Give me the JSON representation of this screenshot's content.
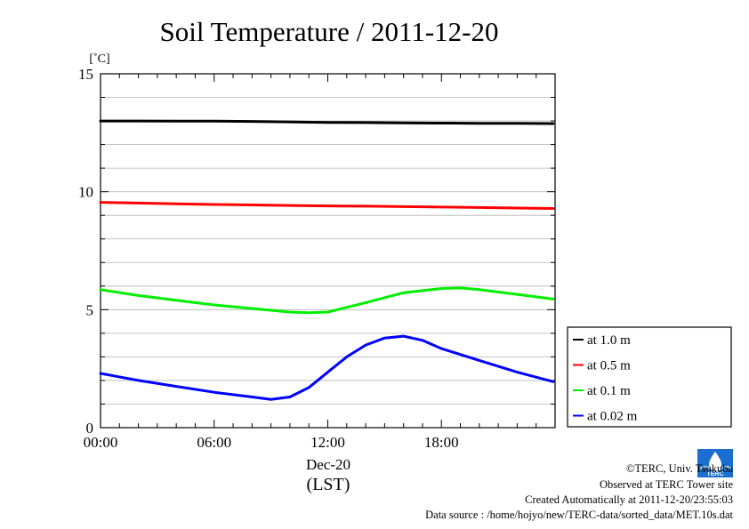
{
  "chart_data": {
    "type": "line",
    "title": "Soil Temperature / 2011-12-20",
    "ylabel": "[˚C]",
    "xlabel": "(LST)",
    "x_date_label": "Dec-20",
    "x_ticks": [
      "00:00",
      "06:00",
      "12:00",
      "18:00"
    ],
    "y_ticks": [
      "0",
      "5",
      "10",
      "15"
    ],
    "xlim": [
      0,
      24
    ],
    "ylim": [
      0,
      15
    ],
    "grid": true,
    "legend_position": "bottom-right, outside plot",
    "series": [
      {
        "name": "at 1.0 m",
        "color": "#000000",
        "x": [
          0,
          2,
          4,
          6,
          8,
          10,
          12,
          14,
          16,
          18,
          20,
          22,
          23.9
        ],
        "y": [
          13.0,
          13.0,
          12.99,
          12.99,
          12.98,
          12.96,
          12.94,
          12.93,
          12.92,
          12.91,
          12.9,
          12.9,
          12.89
        ]
      },
      {
        "name": "at 0.5 m",
        "color": "#ff0000",
        "x": [
          0,
          2,
          4,
          6,
          8,
          10,
          12,
          14,
          16,
          18,
          20,
          22,
          23.9
        ],
        "y": [
          9.55,
          9.52,
          9.49,
          9.46,
          9.44,
          9.42,
          9.4,
          9.39,
          9.37,
          9.35,
          9.33,
          9.31,
          9.29
        ]
      },
      {
        "name": "at 0.1 m",
        "color": "#00ee00",
        "x": [
          0,
          2,
          4,
          6,
          8,
          10,
          11,
          12,
          14,
          16,
          18,
          19,
          20,
          22,
          23.9
        ],
        "y": [
          5.85,
          5.6,
          5.4,
          5.2,
          5.05,
          4.9,
          4.87,
          4.9,
          5.3,
          5.72,
          5.9,
          5.92,
          5.85,
          5.65,
          5.45
        ]
      },
      {
        "name": "at 0.02 m",
        "color": "#0000ff",
        "x": [
          0,
          2,
          4,
          6,
          8,
          9,
          10,
          11,
          12,
          13,
          14,
          15,
          16,
          17,
          18,
          19,
          20,
          22,
          23.9
        ],
        "y": [
          2.3,
          2.0,
          1.75,
          1.5,
          1.3,
          1.2,
          1.3,
          1.7,
          2.35,
          3.0,
          3.5,
          3.8,
          3.88,
          3.7,
          3.35,
          3.1,
          2.85,
          2.35,
          1.95
        ]
      }
    ]
  },
  "footer": {
    "copyright": "©TERC, Univ. Tsukuba",
    "observed": "Observed at TERC Tower site",
    "created": "Created Automatically at 2011-12-20/23:55:03",
    "source": "Data source : /home/hojyo/new/TERC-data/sorted_data/MET.10s.dat",
    "logo_text": "TERC"
  }
}
